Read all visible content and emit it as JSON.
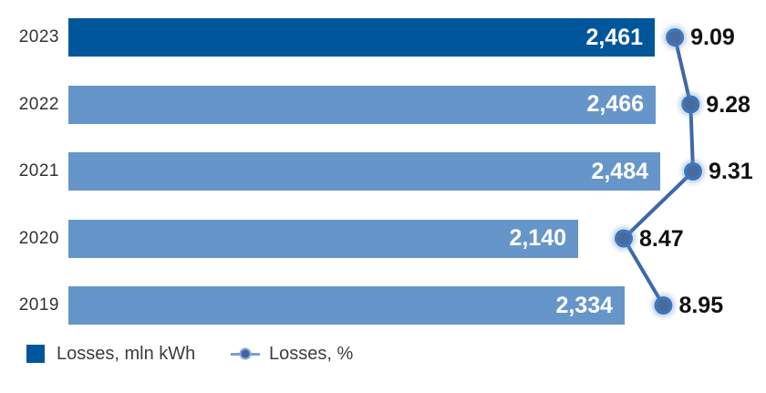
{
  "chart_data": {
    "type": "bar",
    "orientation": "horizontal",
    "title": "",
    "categories": [
      "2023",
      "2022",
      "2021",
      "2020",
      "2019"
    ],
    "series": [
      {
        "name": "Losses, mln kWh",
        "type": "bar",
        "values": [
          2461,
          2466,
          2484,
          2140,
          2334
        ],
        "labels": [
          "2,461",
          "2,466",
          "2,484",
          "2,140",
          "2,334"
        ]
      },
      {
        "name": "Losses, %",
        "type": "line",
        "values": [
          9.09,
          9.28,
          9.31,
          8.47,
          8.95
        ],
        "labels": [
          "9.09",
          "9.28",
          "9.31",
          "8.47",
          "8.95"
        ]
      }
    ],
    "highlight_category": "2023",
    "bar_value_position": "inside-end",
    "pct_label_position": "right-of-marker",
    "grid": false,
    "axes_visible": false,
    "legend_position": "bottom-left"
  },
  "legend": {
    "bar_label": "Losses, mln kWh",
    "line_label": "Losses, %"
  },
  "colors": {
    "bar_highlight": "#00569B",
    "bar_default": "#6696C9",
    "bar_value_text": "#FFFFFF",
    "line": "#3E68A6",
    "dot_inner": "#4A6A9C",
    "dot_ring": "#3A78BC",
    "dot_halo": "#6E96CD",
    "year_text": "#333333",
    "pct_text": "#111111",
    "legend_text": "#3D3D3D",
    "legend_line": "#7E9FD0",
    "legend_dot_inner": "#3C64A4",
    "legend_dot_ring": "#89A8D4"
  }
}
